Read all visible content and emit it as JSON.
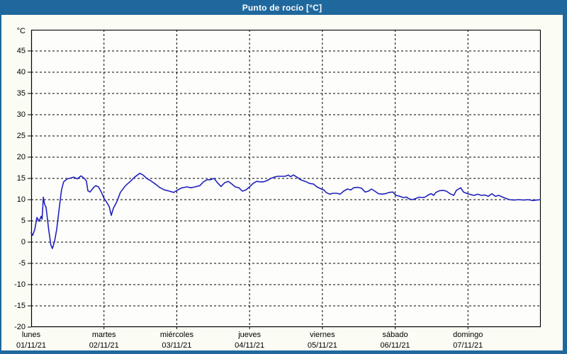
{
  "window": {
    "title": "Punto de rocío [°C]"
  },
  "colors": {
    "titlebar_bg": "#1f689d",
    "titlebar_text": "#ffffff",
    "window_bg": "#fbfcf4",
    "plot_bg": "#fdfefb",
    "border": "#1f689d",
    "grid": "#000000",
    "text": "#000000",
    "line": "#2121bd"
  },
  "chart_data": {
    "type": "line",
    "title": "Punto de rocío [°C]",
    "ylabel": "°C",
    "ylim": [
      -20,
      50
    ],
    "yticks": [
      45,
      40,
      35,
      30,
      25,
      20,
      15,
      10,
      5,
      0,
      -5,
      -10,
      -15,
      -20
    ],
    "grid": true,
    "legend_position": "none",
    "x_total_hours": 168,
    "x_days": [
      {
        "name": "lunes",
        "date": "01/11/21"
      },
      {
        "name": "martes",
        "date": "02/11/21"
      },
      {
        "name": "miércoles",
        "date": "03/11/21"
      },
      {
        "name": "jueves",
        "date": "04/11/21"
      },
      {
        "name": "viernes",
        "date": "05/11/21"
      },
      {
        "name": "sábado",
        "date": "06/11/21"
      },
      {
        "name": "domingo",
        "date": "07/11/21"
      }
    ],
    "series": [
      {
        "name": "Punto de rocío",
        "color": "#2121bd",
        "points": [
          [
            0,
            2.2
          ],
          [
            0.5,
            1.6
          ],
          [
            1.2,
            3
          ],
          [
            1.9,
            5.8
          ],
          [
            2.6,
            4.9
          ],
          [
            3.3,
            6.1
          ],
          [
            3.6,
            5.4
          ],
          [
            4,
            10.6
          ],
          [
            4.4,
            9
          ],
          [
            4.9,
            8.2
          ],
          [
            5.8,
            2.8
          ],
          [
            6.5,
            -0.7
          ],
          [
            7,
            -1.5
          ],
          [
            7.7,
            0.2
          ],
          [
            8.4,
            3
          ],
          [
            9.3,
            8.3
          ],
          [
            10,
            12.3
          ],
          [
            10.7,
            14.2
          ],
          [
            11.9,
            14.9
          ],
          [
            13.1,
            15.1
          ],
          [
            14,
            15.3
          ],
          [
            15.2,
            14.9
          ],
          [
            16.4,
            15.6
          ],
          [
            17.5,
            15
          ],
          [
            18.2,
            14.4
          ],
          [
            18.7,
            12.1
          ],
          [
            19.4,
            11.8
          ],
          [
            20.6,
            12.9
          ],
          [
            21.3,
            13.3
          ],
          [
            22.2,
            13
          ],
          [
            23.1,
            11.8
          ],
          [
            24.1,
            10.2
          ],
          [
            24.8,
            9.5
          ],
          [
            25.7,
            8.4
          ],
          [
            26.4,
            6.3
          ],
          [
            27.1,
            8
          ],
          [
            28.3,
            9.6
          ],
          [
            29.4,
            11.7
          ],
          [
            31.1,
            13.3
          ],
          [
            32.7,
            14.3
          ],
          [
            34.1,
            15.3
          ],
          [
            35.8,
            16.2
          ],
          [
            36.9,
            15.8
          ],
          [
            38.1,
            15
          ],
          [
            39.3,
            14.5
          ],
          [
            40.9,
            13.7
          ],
          [
            42.3,
            12.9
          ],
          [
            43.9,
            12.3
          ],
          [
            45.6,
            12
          ],
          [
            47,
            11.7
          ],
          [
            48.6,
            12.4
          ],
          [
            49.8,
            12.8
          ],
          [
            51.4,
            13
          ],
          [
            52.6,
            12.8
          ],
          [
            54,
            13
          ],
          [
            55.6,
            13.3
          ],
          [
            56.8,
            14.2
          ],
          [
            58,
            14.7
          ],
          [
            59.1,
            14.7
          ],
          [
            60.3,
            15
          ],
          [
            61.5,
            13.9
          ],
          [
            62.6,
            13.1
          ],
          [
            63.8,
            14
          ],
          [
            65,
            14.3
          ],
          [
            66.1,
            13.7
          ],
          [
            67.3,
            13
          ],
          [
            68.5,
            12.8
          ],
          [
            69.6,
            12
          ],
          [
            70.8,
            12.3
          ],
          [
            72,
            13
          ],
          [
            73.1,
            13.8
          ],
          [
            74.3,
            14.3
          ],
          [
            75.5,
            14.2
          ],
          [
            76.6,
            14.2
          ],
          [
            77.8,
            14.5
          ],
          [
            79,
            15
          ],
          [
            80.1,
            15.3
          ],
          [
            81.3,
            15.5
          ],
          [
            82.5,
            15.5
          ],
          [
            83.7,
            15.5
          ],
          [
            84.8,
            15.8
          ],
          [
            85.5,
            15.4
          ],
          [
            86.5,
            15.8
          ],
          [
            87.6,
            15.3
          ],
          [
            88.8,
            14.7
          ],
          [
            89.5,
            14.5
          ],
          [
            90.7,
            14.2
          ],
          [
            91.8,
            13.8
          ],
          [
            93,
            13.7
          ],
          [
            94.2,
            13
          ],
          [
            96,
            12.4
          ],
          [
            96.5,
            12.3
          ],
          [
            97.2,
            11.7
          ],
          [
            98.4,
            11.3
          ],
          [
            99.5,
            11.5
          ],
          [
            100.7,
            11.5
          ],
          [
            101.9,
            11.3
          ],
          [
            103,
            12
          ],
          [
            104.2,
            12.5
          ],
          [
            105.4,
            12.3
          ],
          [
            106.3,
            12.8
          ],
          [
            107.7,
            12.9
          ],
          [
            108.9,
            12.7
          ],
          [
            110.1,
            11.8
          ],
          [
            111.2,
            12
          ],
          [
            112.2,
            12.5
          ],
          [
            113.3,
            12
          ],
          [
            114.5,
            11.4
          ],
          [
            115.7,
            11.3
          ],
          [
            116.8,
            11.4
          ],
          [
            118,
            11.7
          ],
          [
            119.2,
            11.8
          ],
          [
            120.3,
            11
          ],
          [
            121.5,
            10.8
          ],
          [
            122.7,
            10.5
          ],
          [
            123.8,
            10.6
          ],
          [
            124.5,
            10.2
          ],
          [
            125.7,
            10
          ],
          [
            126.9,
            10.3
          ],
          [
            128,
            10.6
          ],
          [
            128.7,
            10.5
          ],
          [
            129.9,
            10.6
          ],
          [
            131.1,
            11.2
          ],
          [
            132,
            11.4
          ],
          [
            132.7,
            11
          ],
          [
            133.4,
            11.7
          ],
          [
            134.6,
            12.1
          ],
          [
            135.8,
            12.2
          ],
          [
            136.9,
            12
          ],
          [
            138.1,
            11.4
          ],
          [
            139.3,
            11
          ],
          [
            140.2,
            12.2
          ],
          [
            141.6,
            12.8
          ],
          [
            142.5,
            11.8
          ],
          [
            143.9,
            11.4
          ],
          [
            144.9,
            11.2
          ],
          [
            146,
            11
          ],
          [
            147.2,
            11.3
          ],
          [
            148.4,
            11
          ],
          [
            149.5,
            11.1
          ],
          [
            150.7,
            10.8
          ],
          [
            151.9,
            11.4
          ],
          [
            153,
            10.8
          ],
          [
            154.2,
            11
          ],
          [
            155.4,
            10.6
          ],
          [
            156.5,
            10.3
          ],
          [
            157.7,
            10
          ],
          [
            159.1,
            9.9
          ],
          [
            160.8,
            10
          ],
          [
            162.4,
            9.9
          ],
          [
            163.8,
            10
          ],
          [
            165.4,
            9.8
          ],
          [
            166.6,
            9.9
          ],
          [
            168,
            10
          ]
        ]
      }
    ]
  }
}
